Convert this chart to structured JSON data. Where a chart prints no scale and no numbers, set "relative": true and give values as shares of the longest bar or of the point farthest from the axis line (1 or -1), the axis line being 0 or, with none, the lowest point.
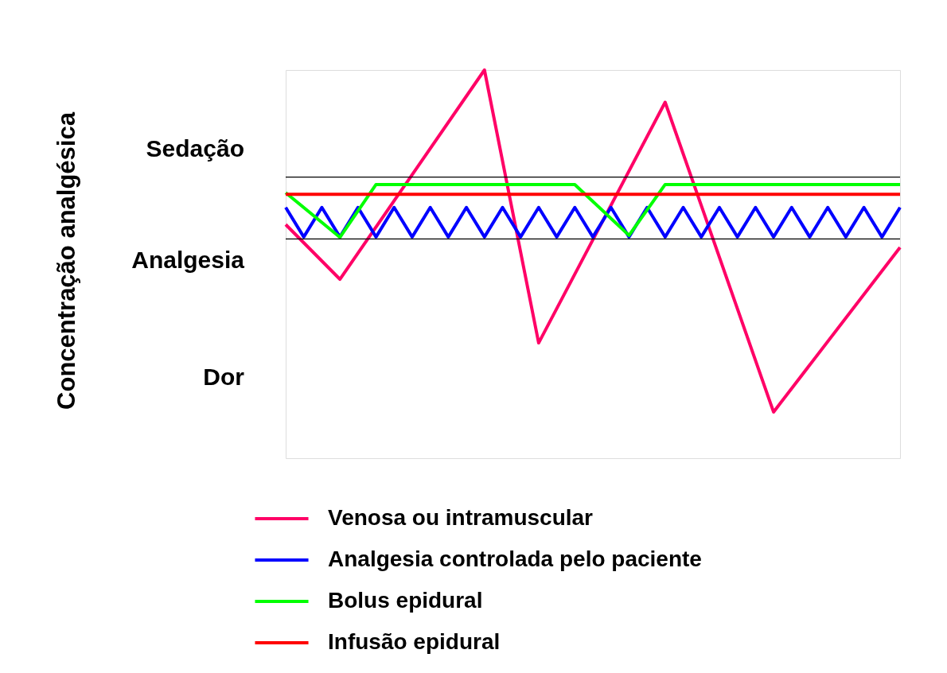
{
  "chart_data": {
    "type": "line",
    "relative": true,
    "tick_labels": false,
    "grid": false,
    "legend": "bottom",
    "marker": "none",
    "line_style": "solid",
    "categories": [
      null,
      null,
      null,
      null,
      null,
      null,
      null,
      null,
      null,
      null,
      null,
      null,
      null,
      null,
      null,
      null,
      null,
      null,
      null,
      null,
      null,
      null,
      null,
      null,
      null,
      null,
      null,
      null,
      null,
      null,
      null,
      null,
      null,
      null,
      null
    ],
    "series": [
      {
        "name": "Venosa ou intramuscular",
        "color": "#ff0066",
        "values": [
          0.602,
          null,
          null,
          0.461,
          null,
          null,
          null,
          null,
          null,
          null,
          null,
          1,
          null,
          null,
          0.297,
          null,
          null,
          null,
          null,
          null,
          null,
          0.917,
          null,
          null,
          null,
          null,
          null,
          0.119,
          null,
          null,
          null,
          null,
          null,
          null,
          0.543
        ]
      },
      {
        "name": "Analgesia controlada pelo paciente",
        "color": "#0000ff",
        "values": [
          0.646,
          0.57,
          0.646,
          0.57,
          0.646,
          0.57,
          0.646,
          0.57,
          0.646,
          0.57,
          0.646,
          0.57,
          0.646,
          0.57,
          0.646,
          0.57,
          0.646,
          0.57,
          0.646,
          0.57,
          0.646,
          0.57,
          0.646,
          0.57,
          0.646,
          0.57,
          0.646,
          0.57,
          0.646,
          0.57,
          0.646,
          0.57,
          0.646,
          0.57,
          0.646
        ]
      },
      {
        "name": "Bolus epidural",
        "color": "#00ff00",
        "values": [
          0.684,
          null,
          null,
          0.569,
          null,
          0.705,
          null,
          null,
          null,
          null,
          null,
          null,
          null,
          null,
          null,
          null,
          0.705,
          null,
          null,
          0.574,
          null,
          0.705,
          null,
          null,
          null,
          null,
          null,
          null,
          null,
          null,
          null,
          null,
          null,
          null,
          0.705
        ]
      },
      {
        "name": "Infusão epidural",
        "color": "#ff0000",
        "values": [
          0.68,
          0.68,
          0.68,
          0.68,
          0.68,
          0.68,
          0.68,
          0.68,
          0.68,
          0.68,
          0.68,
          0.68,
          0.68,
          0.68,
          0.68,
          0.68,
          0.68,
          0.68,
          0.68,
          0.68,
          0.68,
          0.68,
          0.68,
          0.68,
          0.68,
          0.68,
          0.68,
          0.68,
          0.68,
          0.68,
          0.68,
          0.68,
          0.68,
          0.68,
          0.68
        ]
      }
    ],
    "ref_lines": [
      {
        "axis": "y",
        "value": 0.724,
        "color": "#000000"
      },
      {
        "axis": "y",
        "value": 0.565,
        "color": "#000000"
      }
    ],
    "annotations": [
      "Concentração analgésica",
      "Sedação",
      "Analgesia",
      "Dor"
    ]
  }
}
